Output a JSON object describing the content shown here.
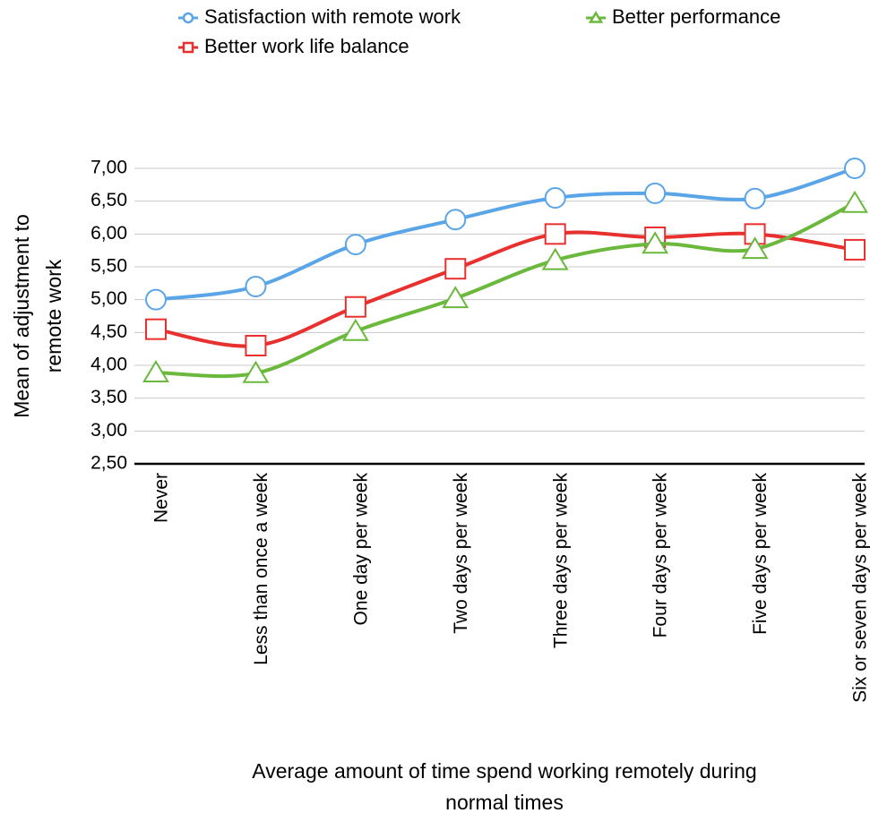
{
  "chart_data": {
    "type": "line",
    "categories": [
      "Never",
      "Less than once a week",
      "One day per week",
      "Two days per week",
      "Three days per week",
      "Four days per week",
      "Five days per week",
      "Six or seven days per week"
    ],
    "series": [
      {
        "name": "Satisfaction with remote work",
        "color": "#5aa5e8",
        "marker": "circle",
        "values": [
          5.0,
          5.2,
          5.84,
          6.22,
          6.55,
          6.62,
          6.54,
          7.0
        ]
      },
      {
        "name": "Better work life balance",
        "color": "#e8312e",
        "marker": "square",
        "values": [
          4.55,
          4.3,
          4.89,
          5.47,
          6.0,
          5.95,
          6.0,
          5.76
        ]
      },
      {
        "name": "Better performance",
        "color": "#6ab83c",
        "marker": "triangle",
        "values": [
          3.89,
          3.88,
          4.52,
          5.02,
          5.6,
          5.85,
          5.77,
          6.47
        ]
      }
    ],
    "ylim": [
      2.5,
      7.0
    ],
    "yticks": [
      {
        "value": 2.5,
        "label": "2,50"
      },
      {
        "value": 3.0,
        "label": "3,00"
      },
      {
        "value": 3.5,
        "label": "3,50"
      },
      {
        "value": 4.0,
        "label": "4,00"
      },
      {
        "value": 4.5,
        "label": "4,50"
      },
      {
        "value": 5.0,
        "label": "5,00"
      },
      {
        "value": 5.5,
        "label": "5,50"
      },
      {
        "value": 6.0,
        "label": "6,00"
      },
      {
        "value": 6.5,
        "label": "6,50"
      },
      {
        "value": 7.0,
        "label": "7,00"
      }
    ],
    "ylabel": [
      "Mean of adjustment to",
      "remote work"
    ],
    "xlabel": [
      "Average amount of time spend working remotely during",
      "normal times"
    ],
    "grid": true,
    "smooth": true,
    "legend": "top"
  }
}
